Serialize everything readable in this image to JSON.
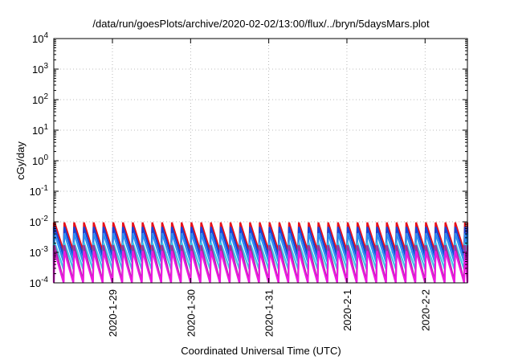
{
  "chart_data": {
    "type": "line",
    "title": "/data/run/goesPlots/archive/2020-02-02/13:00/flux/../bryn/5daysMars.plot",
    "xlabel": "Coordinated Universal Time (UTC)",
    "ylabel": "cGy/day",
    "yscale": "log",
    "ylim": [
      0.0001,
      10000
    ],
    "y_ticks": [
      {
        "value": 0.0001,
        "mant": "10",
        "exp": "-4"
      },
      {
        "value": 0.001,
        "mant": "10",
        "exp": "-3"
      },
      {
        "value": 0.01,
        "mant": "10",
        "exp": "-2"
      },
      {
        "value": 0.1,
        "mant": "10",
        "exp": "-1"
      },
      {
        "value": 1,
        "mant": "10",
        "exp": "0"
      },
      {
        "value": 10,
        "mant": "10",
        "exp": "1"
      },
      {
        "value": 100,
        "mant": "10",
        "exp": "2"
      },
      {
        "value": 1000,
        "mant": "10",
        "exp": "3"
      },
      {
        "value": 10000,
        "mant": "10",
        "exp": "4"
      }
    ],
    "xlim": [
      "2020-01-28T06:00",
      "2020-02-02T13:00"
    ],
    "x_ticks": [
      "2020-1-29",
      "2020-1-30",
      "2020-1-31",
      "2020-2-1",
      "2020-2-2"
    ],
    "grid": true,
    "sawtooth_period_hours": 3,
    "series": [
      {
        "color": "#e8101a",
        "peak": 0.0095,
        "floor": 0.0011
      },
      {
        "color": "#1844d8",
        "peak": 0.0068,
        "floor": 0.00075
      },
      {
        "color": "#2a8ff0",
        "peak": 0.0042,
        "floor": 0.00048
      },
      {
        "color": "#3ec8e6",
        "peak": 0.0021,
        "floor": 0.00028
      },
      {
        "color": "#a0309a",
        "peak": 0.0017,
        "floor": 0.00011
      },
      {
        "color": "#ee18e0",
        "peak": 0.0011,
        "floor": 0.0001
      }
    ]
  }
}
